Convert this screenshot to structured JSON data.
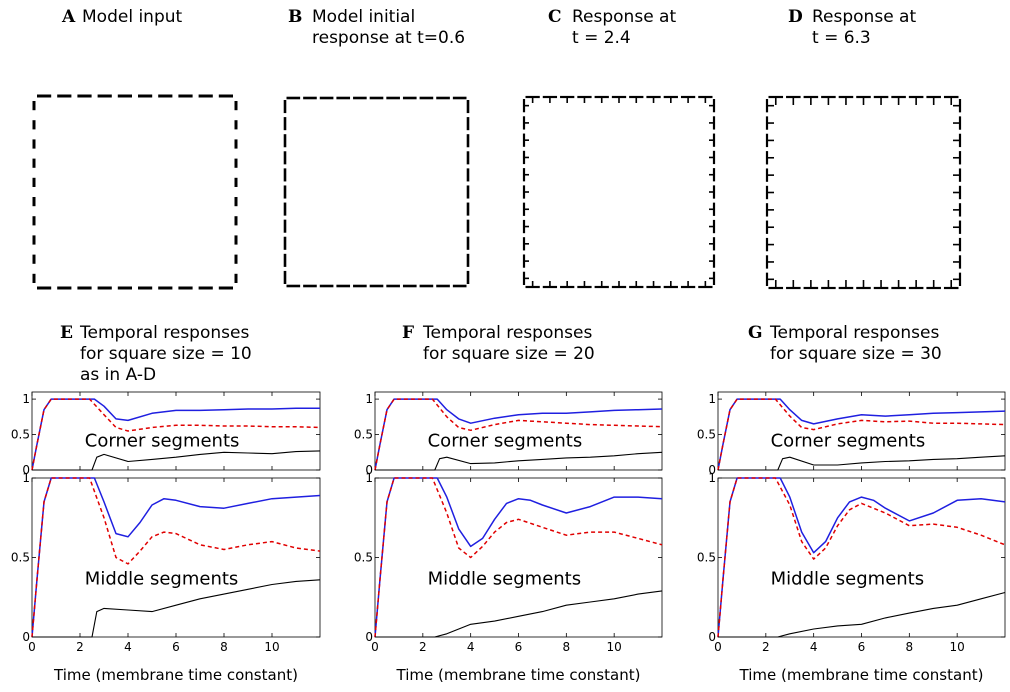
{
  "figure": {
    "top_panels": [
      {
        "label": "A",
        "title_lines": [
          "Model input"
        ],
        "response": "input"
      },
      {
        "label": "B",
        "title_lines": [
          "Model initial",
          "response at t=0.6"
        ],
        "response": "initial"
      },
      {
        "label": "C",
        "title_lines": [
          "Response at",
          "t = 2.4"
        ],
        "response": "mid"
      },
      {
        "label": "D",
        "title_lines": [
          "Response at",
          "t = 6.3"
        ],
        "response": "late"
      }
    ],
    "bottom_panels": [
      {
        "label": "E",
        "title_lines": [
          "Temporal responses",
          "for square size = 10",
          "as in A-D"
        ]
      },
      {
        "label": "F",
        "title_lines": [
          "Temporal responses",
          "for square size = 20"
        ]
      },
      {
        "label": "G",
        "title_lines": [
          "Temporal responses",
          "for square size = 30"
        ]
      }
    ],
    "annotations": {
      "corner": "Corner segments",
      "middle": "Middle segments"
    },
    "colors": {
      "blue": "#1f1fe0",
      "red": "#e00000",
      "black": "#000000"
    }
  },
  "chart_data": [
    {
      "type": "line",
      "panel": "E",
      "subplot": "corner",
      "xlabel": "",
      "ylabel": "",
      "xlim": [
        0,
        12
      ],
      "ylim": [
        0,
        1.1
      ],
      "yticks": [
        0,
        0.5,
        1
      ],
      "xticks": [],
      "annotation": "Corner segments",
      "series": [
        {
          "color": "blue",
          "style": "solid",
          "x": [
            0,
            0.2,
            0.5,
            0.8,
            1,
            1.5,
            2,
            2.6,
            3,
            3.5,
            4,
            5,
            6,
            7,
            8,
            9,
            10,
            11,
            12
          ],
          "y": [
            0,
            0.35,
            0.85,
            1,
            1,
            1,
            1,
            1,
            0.9,
            0.72,
            0.7,
            0.8,
            0.84,
            0.84,
            0.85,
            0.86,
            0.86,
            0.87,
            0.87
          ]
        },
        {
          "color": "red",
          "style": "dashed",
          "x": [
            0,
            0.2,
            0.5,
            0.8,
            1,
            1.5,
            2,
            2.4,
            3,
            3.5,
            4,
            5,
            6,
            7,
            8,
            9,
            10,
            11,
            12
          ],
          "y": [
            0,
            0.35,
            0.85,
            1,
            1,
            1,
            1,
            1,
            0.78,
            0.6,
            0.55,
            0.6,
            0.63,
            0.63,
            0.62,
            0.62,
            0.61,
            0.61,
            0.6
          ]
        },
        {
          "color": "black",
          "style": "solid",
          "x": [
            0,
            2.5,
            2.7,
            3,
            4,
            5,
            6,
            7,
            8,
            9,
            10,
            11,
            12
          ],
          "y": [
            0,
            0,
            0.18,
            0.22,
            0.12,
            0.15,
            0.18,
            0.22,
            0.25,
            0.24,
            0.23,
            0.26,
            0.27
          ]
        }
      ]
    },
    {
      "type": "line",
      "panel": "E",
      "subplot": "middle",
      "xlabel": "Time (membrane time constant)",
      "ylabel": "",
      "xlim": [
        0,
        12
      ],
      "ylim": [
        0,
        1.0
      ],
      "yticks": [
        0,
        0.5,
        1
      ],
      "xticks": [
        0,
        2,
        4,
        6,
        8,
        10
      ],
      "annotation": "Middle segments",
      "series": [
        {
          "color": "blue",
          "style": "solid",
          "x": [
            0,
            0.2,
            0.5,
            0.8,
            1,
            1.5,
            2,
            2.6,
            3,
            3.5,
            4,
            4.5,
            5,
            5.5,
            6,
            7,
            8,
            9,
            10,
            11,
            12
          ],
          "y": [
            0,
            0.35,
            0.85,
            1,
            1,
            1,
            1,
            1,
            0.85,
            0.65,
            0.63,
            0.72,
            0.83,
            0.87,
            0.86,
            0.82,
            0.81,
            0.84,
            0.87,
            0.88,
            0.89
          ]
        },
        {
          "color": "red",
          "style": "dashed",
          "x": [
            0,
            0.2,
            0.5,
            0.8,
            1,
            1.5,
            2,
            2.4,
            3,
            3.5,
            4,
            4.5,
            5,
            5.5,
            6,
            7,
            8,
            9,
            10,
            11,
            12
          ],
          "y": [
            0,
            0.35,
            0.85,
            1,
            1,
            1,
            1,
            1,
            0.75,
            0.5,
            0.46,
            0.54,
            0.63,
            0.66,
            0.65,
            0.58,
            0.55,
            0.58,
            0.6,
            0.56,
            0.54
          ]
        },
        {
          "color": "black",
          "style": "solid",
          "x": [
            0,
            0.5,
            2.5,
            2.7,
            3,
            4,
            5,
            6,
            7,
            8,
            9,
            10,
            11,
            12
          ],
          "y": [
            0,
            0,
            0,
            0.16,
            0.18,
            0.17,
            0.16,
            0.2,
            0.24,
            0.27,
            0.3,
            0.33,
            0.35,
            0.36
          ]
        }
      ]
    },
    {
      "type": "line",
      "panel": "F",
      "subplot": "corner",
      "xlabel": "",
      "ylabel": "",
      "xlim": [
        0,
        12
      ],
      "ylim": [
        0,
        1.1
      ],
      "yticks": [
        0,
        0.5,
        1
      ],
      "xticks": [],
      "annotation": "Corner segments",
      "series": [
        {
          "color": "blue",
          "style": "solid",
          "x": [
            0,
            0.2,
            0.5,
            0.8,
            1,
            1.5,
            2,
            2.6,
            3,
            3.5,
            4,
            5,
            6,
            7,
            8,
            9,
            10,
            11,
            12
          ],
          "y": [
            0,
            0.35,
            0.85,
            1,
            1,
            1,
            1,
            1,
            0.85,
            0.72,
            0.66,
            0.73,
            0.78,
            0.8,
            0.8,
            0.82,
            0.84,
            0.85,
            0.86
          ]
        },
        {
          "color": "red",
          "style": "dashed",
          "x": [
            0,
            0.2,
            0.5,
            0.8,
            1,
            1.5,
            2,
            2.4,
            3,
            3.5,
            4,
            5,
            6,
            7,
            8,
            9,
            10,
            11,
            12
          ],
          "y": [
            0,
            0.35,
            0.85,
            1,
            1,
            1,
            1,
            1,
            0.75,
            0.6,
            0.56,
            0.64,
            0.7,
            0.68,
            0.66,
            0.64,
            0.63,
            0.62,
            0.61
          ]
        },
        {
          "color": "black",
          "style": "solid",
          "x": [
            0,
            2.5,
            2.7,
            3,
            4,
            5,
            6,
            7,
            8,
            9,
            10,
            11,
            12
          ],
          "y": [
            0,
            0,
            0.16,
            0.18,
            0.09,
            0.1,
            0.13,
            0.15,
            0.17,
            0.18,
            0.2,
            0.23,
            0.25
          ]
        }
      ]
    },
    {
      "type": "line",
      "panel": "F",
      "subplot": "middle",
      "xlabel": "Time (membrane time constant)",
      "ylabel": "",
      "xlim": [
        0,
        12
      ],
      "ylim": [
        0,
        1.0
      ],
      "yticks": [
        0,
        0.5,
        1
      ],
      "xticks": [
        0,
        2,
        4,
        6,
        8,
        10
      ],
      "annotation": "Middle segments",
      "series": [
        {
          "color": "blue",
          "style": "solid",
          "x": [
            0,
            0.2,
            0.5,
            0.8,
            1,
            1.5,
            2,
            2.6,
            3,
            3.5,
            4,
            4.5,
            5,
            5.5,
            6,
            6.5,
            7,
            8,
            9,
            10,
            11,
            12
          ],
          "y": [
            0,
            0.35,
            0.85,
            1,
            1,
            1,
            1,
            1,
            0.88,
            0.68,
            0.57,
            0.62,
            0.74,
            0.84,
            0.87,
            0.86,
            0.83,
            0.78,
            0.82,
            0.88,
            0.88,
            0.87
          ]
        },
        {
          "color": "red",
          "style": "dashed",
          "x": [
            0,
            0.2,
            0.5,
            0.8,
            1,
            1.5,
            2,
            2.4,
            3,
            3.5,
            4,
            4.5,
            5,
            5.5,
            6,
            7,
            8,
            9,
            10,
            11,
            12
          ],
          "y": [
            0,
            0.35,
            0.85,
            1,
            1,
            1,
            1,
            1,
            0.78,
            0.56,
            0.5,
            0.57,
            0.66,
            0.72,
            0.74,
            0.69,
            0.64,
            0.66,
            0.66,
            0.62,
            0.58
          ]
        },
        {
          "color": "black",
          "style": "solid",
          "x": [
            0,
            0.3,
            2.5,
            3,
            4,
            5,
            6,
            7,
            8,
            9,
            10,
            11,
            12
          ],
          "y": [
            0,
            0,
            0,
            0.02,
            0.08,
            0.1,
            0.13,
            0.16,
            0.2,
            0.22,
            0.24,
            0.27,
            0.29
          ]
        }
      ]
    },
    {
      "type": "line",
      "panel": "G",
      "subplot": "corner",
      "xlabel": "",
      "ylabel": "",
      "xlim": [
        0,
        12
      ],
      "ylim": [
        0,
        1.1
      ],
      "yticks": [
        0,
        0.5,
        1
      ],
      "xticks": [],
      "annotation": "Corner segments",
      "series": [
        {
          "color": "blue",
          "style": "solid",
          "x": [
            0,
            0.2,
            0.5,
            0.8,
            1,
            1.5,
            2,
            2.6,
            3,
            3.5,
            4,
            5,
            6,
            7,
            8,
            9,
            10,
            11,
            12
          ],
          "y": [
            0,
            0.35,
            0.85,
            1,
            1,
            1,
            1,
            1,
            0.85,
            0.7,
            0.65,
            0.72,
            0.78,
            0.76,
            0.78,
            0.8,
            0.81,
            0.82,
            0.83
          ]
        },
        {
          "color": "red",
          "style": "dashed",
          "x": [
            0,
            0.2,
            0.5,
            0.8,
            1,
            1.5,
            2,
            2.4,
            3,
            3.5,
            4,
            5,
            6,
            7,
            8,
            9,
            10,
            11,
            12
          ],
          "y": [
            0,
            0.35,
            0.85,
            1,
            1,
            1,
            1,
            1,
            0.76,
            0.6,
            0.57,
            0.65,
            0.7,
            0.68,
            0.69,
            0.66,
            0.66,
            0.65,
            0.64
          ]
        },
        {
          "color": "black",
          "style": "solid",
          "x": [
            0,
            2.5,
            2.7,
            3,
            4,
            5,
            6,
            7,
            8,
            9,
            10,
            11,
            12
          ],
          "y": [
            0,
            0,
            0.16,
            0.18,
            0.07,
            0.07,
            0.1,
            0.12,
            0.13,
            0.15,
            0.16,
            0.18,
            0.2
          ]
        }
      ]
    },
    {
      "type": "line",
      "panel": "G",
      "subplot": "middle",
      "xlabel": "Time (membrane time constant)",
      "ylabel": "",
      "xlim": [
        0,
        12
      ],
      "ylim": [
        0,
        1.0
      ],
      "yticks": [
        0,
        0.5,
        1
      ],
      "xticks": [
        0,
        2,
        4,
        6,
        8,
        10
      ],
      "annotation": "Middle segments",
      "series": [
        {
          "color": "blue",
          "style": "solid",
          "x": [
            0,
            0.2,
            0.5,
            0.8,
            1,
            1.5,
            2,
            2.6,
            3,
            3.5,
            4,
            4.5,
            5,
            5.5,
            6,
            6.5,
            7,
            8,
            9,
            10,
            11,
            12
          ],
          "y": [
            0,
            0.35,
            0.85,
            1,
            1,
            1,
            1,
            1,
            0.88,
            0.66,
            0.53,
            0.6,
            0.75,
            0.85,
            0.88,
            0.86,
            0.81,
            0.73,
            0.78,
            0.86,
            0.87,
            0.85
          ]
        },
        {
          "color": "red",
          "style": "dashed",
          "x": [
            0,
            0.2,
            0.5,
            0.8,
            1,
            1.5,
            2,
            2.4,
            3,
            3.5,
            4,
            4.5,
            5,
            5.5,
            6,
            7,
            8,
            9,
            10,
            11,
            12
          ],
          "y": [
            0,
            0.35,
            0.85,
            1,
            1,
            1,
            1,
            1,
            0.83,
            0.6,
            0.49,
            0.56,
            0.7,
            0.8,
            0.84,
            0.78,
            0.7,
            0.71,
            0.69,
            0.64,
            0.58
          ]
        },
        {
          "color": "black",
          "style": "solid",
          "x": [
            0,
            0.3,
            2.5,
            3,
            4,
            5,
            6,
            7,
            8,
            9,
            10,
            11,
            12
          ],
          "y": [
            0,
            0,
            0,
            0.02,
            0.05,
            0.07,
            0.08,
            0.12,
            0.15,
            0.18,
            0.2,
            0.24,
            0.28
          ]
        }
      ]
    }
  ]
}
